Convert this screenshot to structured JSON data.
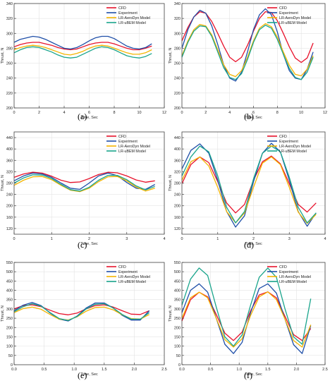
{
  "legend_entries": [
    "CFD",
    "Experiment",
    "LR-AeroDyn Model",
    "LR-uBEM Model"
  ],
  "series_colors": {
    "CFD": "#e8122b",
    "Experiment": "#1f4fa8",
    "LR-AeroDyn Model": "#f4b400",
    "LR-uBEM Model": "#1aa58c"
  },
  "chart_data": [
    {
      "type": "line",
      "panel_label": "(a)",
      "xlabel": "Time, Sec",
      "ylabel": "Thrust, N",
      "xlim": [
        0,
        12
      ],
      "ylim": [
        200,
        340
      ],
      "xticks": [
        0,
        2,
        4,
        6,
        8,
        10,
        12
      ],
      "yticks": [
        200,
        220,
        240,
        260,
        280,
        300,
        320,
        340
      ],
      "grid": true,
      "legend_position": "top-right",
      "x": [
        0,
        0.5,
        1,
        1.5,
        2,
        2.5,
        3,
        3.5,
        4,
        4.5,
        5,
        5.5,
        6,
        6.5,
        7,
        7.5,
        8,
        8.5,
        9,
        9.5,
        10,
        10.5,
        11
      ],
      "series": [
        {
          "name": "CFD",
          "values": [
            282,
            285,
            287,
            288,
            288,
            286,
            284,
            281,
            279,
            278,
            279,
            282,
            285,
            287,
            288,
            288,
            286,
            283,
            280,
            278,
            278,
            280,
            283
          ]
        },
        {
          "name": "Experiment",
          "values": [
            288,
            292,
            294,
            296,
            295,
            292,
            288,
            284,
            280,
            279,
            281,
            285,
            290,
            294,
            296,
            296,
            293,
            288,
            283,
            280,
            279,
            281,
            286
          ]
        },
        {
          "name": "LR-AeroDyn Model",
          "values": [
            278,
            281,
            283,
            284,
            283,
            281,
            278,
            275,
            272,
            271,
            273,
            276,
            280,
            283,
            284,
            283,
            280,
            277,
            274,
            272,
            272,
            274,
            278
          ]
        },
        {
          "name": "LR-uBEM Model",
          "values": [
            274,
            278,
            281,
            282,
            281,
            278,
            275,
            271,
            268,
            267,
            268,
            272,
            276,
            280,
            282,
            281,
            278,
            274,
            270,
            268,
            267,
            269,
            273
          ]
        }
      ]
    },
    {
      "type": "line",
      "panel_label": "(b)",
      "xlabel": "Time, Sec",
      "ylabel": "Thrust, N",
      "xlim": [
        0,
        12
      ],
      "ylim": [
        200,
        340
      ],
      "xticks": [
        0,
        2,
        4,
        6,
        8,
        10,
        12
      ],
      "yticks": [
        200,
        220,
        240,
        260,
        280,
        300,
        320,
        340
      ],
      "grid": true,
      "legend_position": "top-right",
      "x": [
        0,
        0.5,
        1,
        1.5,
        2,
        2.5,
        3,
        3.5,
        4,
        4.5,
        5,
        5.5,
        6,
        6.5,
        7,
        7.5,
        8,
        8.5,
        9,
        9.5,
        10,
        10.5,
        11
      ],
      "series": [
        {
          "name": "CFD",
          "values": [
            290,
            308,
            322,
            329,
            327,
            316,
            300,
            283,
            268,
            262,
            268,
            284,
            303,
            320,
            329,
            328,
            317,
            300,
            282,
            267,
            261,
            267,
            287
          ]
        },
        {
          "name": "Experiment",
          "values": [
            280,
            305,
            322,
            331,
            327,
            310,
            285,
            258,
            240,
            236,
            248,
            275,
            305,
            325,
            333,
            325,
            302,
            272,
            250,
            240,
            238,
            252,
            275
          ]
        },
        {
          "name": "LR-AeroDyn Model",
          "values": [
            270,
            290,
            305,
            312,
            310,
            298,
            278,
            258,
            245,
            242,
            250,
            268,
            290,
            307,
            313,
            309,
            295,
            275,
            257,
            245,
            243,
            252,
            270
          ]
        },
        {
          "name": "LR-uBEM Model",
          "values": [
            268,
            288,
            303,
            310,
            309,
            296,
            275,
            254,
            241,
            238,
            246,
            265,
            288,
            305,
            311,
            307,
            292,
            272,
            253,
            241,
            238,
            248,
            268
          ]
        }
      ]
    },
    {
      "type": "line",
      "panel_label": "(c)",
      "xlabel": "Time, Sec",
      "ylabel": "Thrust, N",
      "xlim": [
        0,
        4
      ],
      "ylim": [
        100,
        460
      ],
      "xticks": [
        0,
        1,
        2,
        3,
        4
      ],
      "yticks": [
        120,
        160,
        200,
        240,
        280,
        320,
        360,
        400,
        440
      ],
      "grid": true,
      "legend_position": "top-right",
      "x": [
        0,
        0.25,
        0.5,
        0.75,
        1,
        1.25,
        1.5,
        1.75,
        2,
        2.25,
        2.5,
        2.75,
        3,
        3.25,
        3.5,
        3.75
      ],
      "series": [
        {
          "name": "CFD",
          "values": [
            300,
            312,
            318,
            315,
            304,
            290,
            282,
            284,
            296,
            310,
            318,
            316,
            305,
            291,
            283,
            288
          ]
        },
        {
          "name": "Experiment",
          "values": [
            288,
            305,
            315,
            312,
            300,
            280,
            262,
            258,
            280,
            305,
            315,
            306,
            282,
            262,
            258,
            275
          ]
        },
        {
          "name": "LR-AeroDyn Model",
          "values": [
            272,
            290,
            302,
            303,
            292,
            272,
            255,
            250,
            262,
            285,
            302,
            303,
            288,
            266,
            252,
            262
          ]
        },
        {
          "name": "LR-uBEM Model",
          "values": [
            280,
            298,
            309,
            308,
            296,
            275,
            257,
            252,
            265,
            290,
            307,
            307,
            292,
            270,
            256,
            268
          ]
        }
      ]
    },
    {
      "type": "line",
      "panel_label": "(d)",
      "xlabel": "Time, Sec",
      "ylabel": "Thrust, N",
      "xlim": [
        0,
        4
      ],
      "ylim": [
        100,
        460
      ],
      "xticks": [
        0,
        1,
        2,
        3,
        4
      ],
      "yticks": [
        120,
        160,
        200,
        240,
        280,
        320,
        360,
        400,
        440
      ],
      "grid": true,
      "legend_position": "top-right",
      "x": [
        0,
        0.25,
        0.5,
        0.75,
        1,
        1.25,
        1.5,
        1.75,
        2,
        2.25,
        2.5,
        2.75,
        3,
        3.25,
        3.5,
        3.75
      ],
      "series": [
        {
          "name": "CFD",
          "values": [
            278,
            345,
            372,
            352,
            285,
            210,
            175,
            205,
            290,
            355,
            375,
            348,
            278,
            205,
            178,
            210
          ]
        },
        {
          "name": "Experiment",
          "values": [
            330,
            395,
            418,
            385,
            290,
            180,
            125,
            165,
            285,
            385,
            420,
            390,
            290,
            180,
            128,
            175
          ]
        },
        {
          "name": "LR-AeroDyn Model",
          "values": [
            290,
            355,
            372,
            340,
            265,
            180,
            140,
            175,
            265,
            350,
            372,
            345,
            265,
            178,
            138,
            170
          ]
        },
        {
          "name": "LR-uBEM Model",
          "values": [
            305,
            372,
            410,
            390,
            305,
            195,
            140,
            180,
            295,
            385,
            410,
            390,
            300,
            195,
            140,
            175
          ]
        }
      ]
    },
    {
      "type": "line",
      "panel_label": "(e)",
      "xlabel": "Time, Sec",
      "ylabel": "Thrust, N",
      "xlim": [
        0,
        2.5
      ],
      "ylim": [
        0,
        550
      ],
      "xticks": [
        0.0,
        0.5,
        1.0,
        1.5,
        2.0,
        2.5
      ],
      "yticks": [
        0,
        50,
        100,
        150,
        200,
        250,
        300,
        350,
        400,
        450,
        500,
        550
      ],
      "grid": true,
      "legend_position": "top-right",
      "x": [
        0,
        0.15,
        0.3,
        0.45,
        0.6,
        0.75,
        0.9,
        1.05,
        1.2,
        1.35,
        1.5,
        1.65,
        1.8,
        1.95,
        2.1,
        2.25
      ],
      "series": [
        {
          "name": "CFD",
          "values": [
            300,
            318,
            322,
            312,
            293,
            275,
            268,
            278,
            300,
            318,
            322,
            310,
            290,
            272,
            270,
            290
          ]
        },
        {
          "name": "Experiment",
          "values": [
            290,
            320,
            335,
            318,
            278,
            245,
            235,
            262,
            305,
            332,
            332,
            305,
            265,
            240,
            240,
            290
          ]
        },
        {
          "name": "LR-AeroDyn Model",
          "values": [
            280,
            302,
            310,
            298,
            270,
            245,
            240,
            258,
            288,
            308,
            310,
            295,
            268,
            248,
            245,
            270
          ]
        },
        {
          "name": "LR-uBEM Model",
          "values": [
            285,
            312,
            328,
            315,
            280,
            248,
            238,
            260,
            300,
            325,
            328,
            305,
            270,
            245,
            245,
            280
          ]
        }
      ]
    },
    {
      "type": "line",
      "panel_label": "(f)",
      "xlabel": "Time, Sec",
      "ylabel": "Thrust, N",
      "xlim": [
        0,
        2.5
      ],
      "ylim": [
        0,
        550
      ],
      "xticks": [
        0.0,
        0.5,
        1.0,
        1.5,
        2.0,
        2.5
      ],
      "yticks": [
        0,
        50,
        100,
        150,
        200,
        250,
        300,
        350,
        400,
        450,
        500,
        550
      ],
      "grid": true,
      "legend_position": "top-right",
      "x": [
        0,
        0.15,
        0.3,
        0.45,
        0.6,
        0.75,
        0.9,
        1.05,
        1.2,
        1.35,
        1.5,
        1.65,
        1.8,
        1.95,
        2.1,
        2.25
      ],
      "series": [
        {
          "name": "CFD",
          "values": [
            235,
            350,
            390,
            365,
            270,
            170,
            130,
            175,
            290,
            375,
            392,
            360,
            260,
            162,
            130,
            195
          ]
        },
        {
          "name": "Experiment",
          "values": [
            280,
            400,
            435,
            390,
            250,
            110,
            60,
            120,
            280,
            410,
            435,
            385,
            245,
            108,
            60,
            210
          ]
        },
        {
          "name": "LR-AeroDyn Model",
          "values": [
            250,
            360,
            390,
            360,
            250,
            135,
            95,
            140,
            265,
            365,
            392,
            350,
            245,
            130,
            95,
            215
          ]
        },
        {
          "name": "LR-uBEM Model",
          "values": [
            320,
            460,
            520,
            480,
            310,
            150,
            100,
            160,
            320,
            470,
            520,
            470,
            300,
            150,
            110,
            355
          ]
        }
      ]
    }
  ]
}
